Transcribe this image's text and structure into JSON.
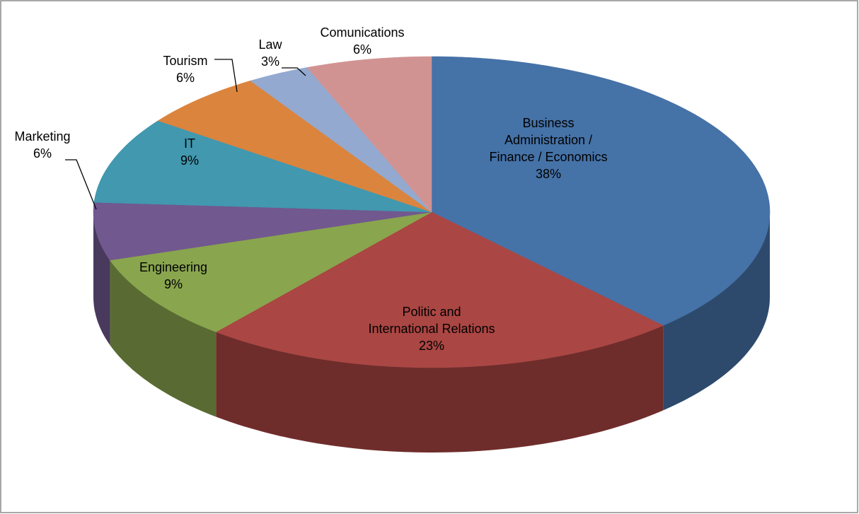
{
  "chart_data": {
    "type": "pie3d",
    "categories": [
      "Business Administration / Finance / Economics",
      "Politic and International Relations",
      "Engineering",
      "Marketing",
      "IT",
      "Tourism",
      "Law",
      "Comunications"
    ],
    "values": [
      38,
      23,
      9,
      6,
      9,
      6,
      3,
      6
    ],
    "value_labels": [
      "38%",
      "23%",
      "9%",
      "6%",
      "9%",
      "6%",
      "3%",
      "6%"
    ],
    "colors": [
      "#4572a7",
      "#aa4643",
      "#89a54e",
      "#71588f",
      "#4198af",
      "#db843d",
      "#93a9cf",
      "#d19392"
    ]
  }
}
